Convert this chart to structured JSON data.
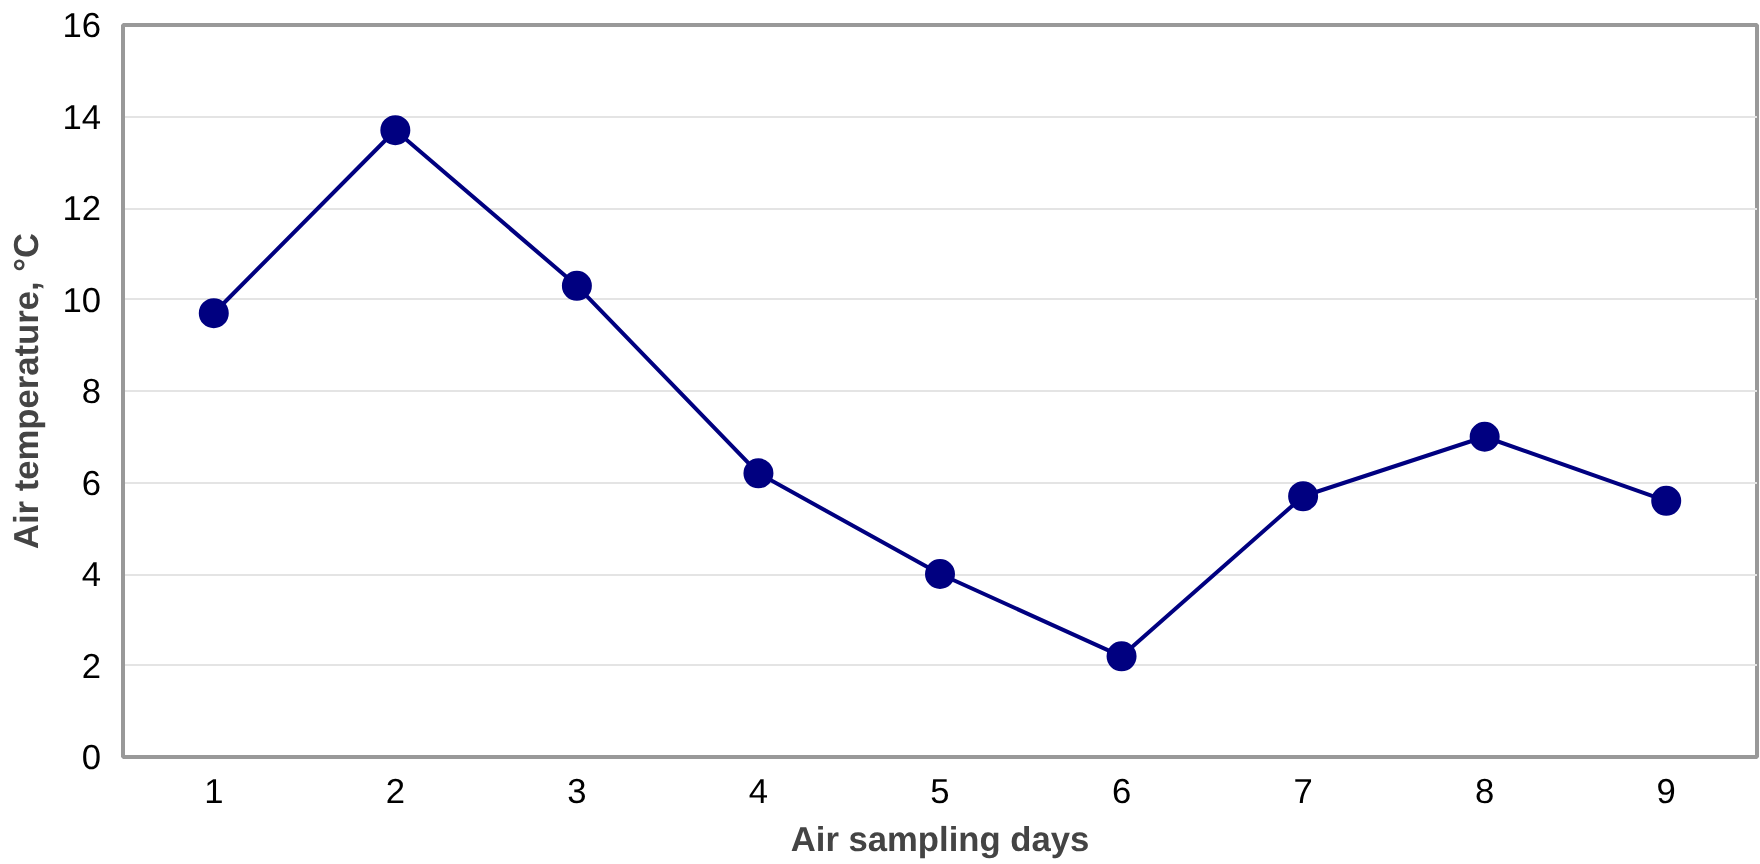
{
  "chart_data": {
    "type": "line",
    "xlabel": "Air sampling days",
    "ylabel": "Air temperature, °C",
    "categories": [
      "1",
      "2",
      "3",
      "4",
      "5",
      "6",
      "7",
      "8",
      "9"
    ],
    "series": [
      {
        "color": "#000080",
        "values": [
          9.7,
          13.7,
          10.3,
          6.2,
          4.0,
          2.2,
          5.7,
          7.0,
          5.6
        ]
      }
    ],
    "ylim": [
      0,
      16
    ],
    "yticks": [
      0,
      2,
      4,
      6,
      8,
      10,
      12,
      14,
      16
    ],
    "grid": "y",
    "marker": "circle",
    "line_style": "solid"
  }
}
